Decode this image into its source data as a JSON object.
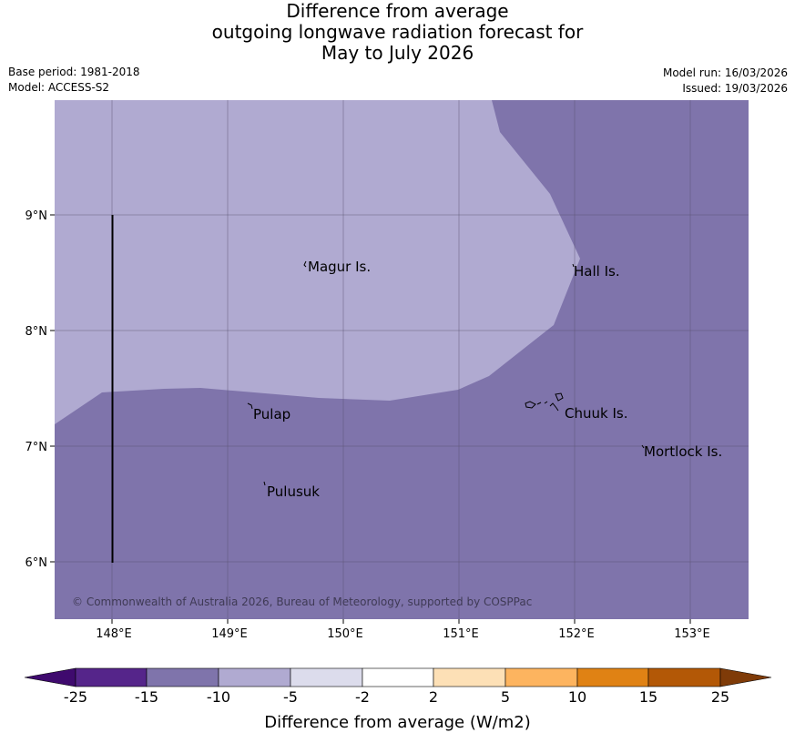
{
  "title": {
    "line1": "Difference from average",
    "line2": "outgoing longwave radiation forecast for",
    "line3": "May to July 2026"
  },
  "meta": {
    "base_period": "Base period: 1981-2018",
    "model": "Model: ACCESS-S2",
    "model_run": "Model run: 16/03/2026",
    "issued": "Issued: 19/03/2026"
  },
  "map": {
    "lon_labels": [
      "148°E",
      "149°E",
      "150°E",
      "151°E",
      "152°E",
      "153°E"
    ],
    "lat_labels": [
      "9°N",
      "8°N",
      "7°N",
      "6°N"
    ],
    "places": [
      {
        "name": "Magur Is."
      },
      {
        "name": "Hall Is."
      },
      {
        "name": "Pulap"
      },
      {
        "name": "Chuuk Is."
      },
      {
        "name": "Mortlock Is."
      },
      {
        "name": "Pulusuk"
      }
    ],
    "copyright": "© Commonwealth of Australia 2026, Bureau of Meteorology, supported by COSPPac",
    "colors": {
      "minus5_minus10": "#b0aad1",
      "minus10_minus15": "#7f74ab",
      "grid": "#5a5070"
    }
  },
  "colorbar": {
    "label": "Difference from average (W/m2)",
    "ticks": [
      "-25",
      "-15",
      "-10",
      "-5",
      "-2",
      "2",
      "5",
      "10",
      "15",
      "25"
    ],
    "colors": [
      "#3f0a6e",
      "#55258a",
      "#7f74ab",
      "#b0aad1",
      "#dcdcec",
      "#ffffff",
      "#fde0b6",
      "#fdb45f",
      "#e08214",
      "#b35806",
      "#7f3b08"
    ]
  }
}
